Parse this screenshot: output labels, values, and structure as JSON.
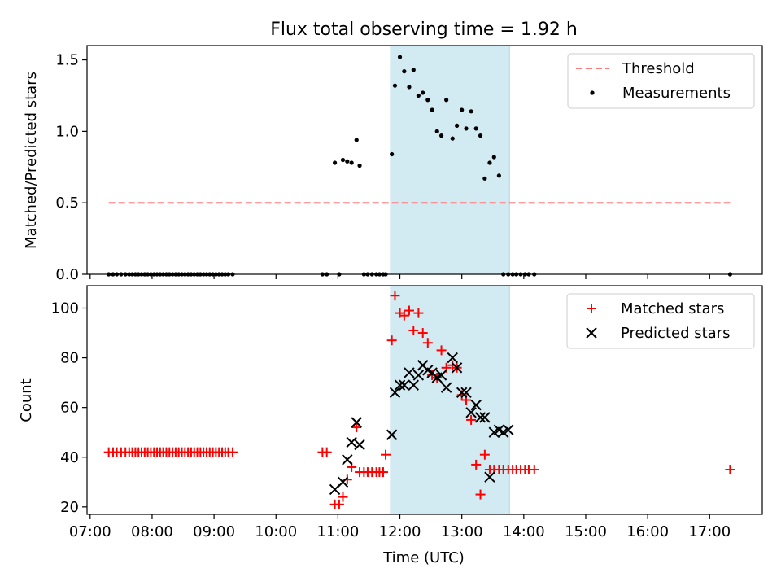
{
  "chart_data": [
    {
      "type": "scatter",
      "title": "Flux total observing time = 1.92 h",
      "xlabel": "",
      "ylabel": "Matched/Predicted stars",
      "x_unit": "hours UTC",
      "xlim": [
        6.95,
        17.85
      ],
      "ylim": [
        0,
        1.6
      ],
      "yticks": [
        0.0,
        0.5,
        1.0,
        1.5
      ],
      "ytick_labels": [
        "0.0",
        "0.5",
        "1.0",
        "1.5"
      ],
      "grid": false,
      "legend_position": "top-right",
      "shaded_span": {
        "x0": 11.85,
        "x1": 13.77,
        "color": "#add8e6"
      },
      "threshold": {
        "name": "Threshold",
        "y": 0.5,
        "x0": 7.3,
        "x1": 17.33,
        "color": "#ff7b7b",
        "style": "dashed"
      },
      "series": [
        {
          "name": "Measurements",
          "marker": "dot",
          "color": "#000000",
          "x": [
            7.3,
            7.37,
            7.43,
            7.5,
            7.57,
            7.63,
            7.68,
            7.73,
            7.78,
            7.83,
            7.88,
            7.93,
            7.98,
            8.03,
            8.08,
            8.13,
            8.18,
            8.23,
            8.28,
            8.33,
            8.38,
            8.43,
            8.48,
            8.53,
            8.58,
            8.63,
            8.68,
            8.73,
            8.78,
            8.83,
            8.88,
            8.93,
            8.98,
            9.03,
            9.08,
            9.13,
            9.18,
            9.23,
            9.3,
            10.75,
            10.82,
            10.95,
            11.02,
            11.08,
            11.15,
            11.22,
            11.3,
            11.35,
            11.42,
            11.48,
            11.55,
            11.62,
            11.67,
            11.73,
            11.77,
            11.87,
            11.92,
            12.0,
            12.07,
            12.15,
            12.22,
            12.3,
            12.37,
            12.45,
            12.52,
            12.6,
            12.67,
            12.75,
            12.85,
            12.92,
            13.0,
            13.07,
            13.15,
            13.23,
            13.3,
            13.37,
            13.45,
            13.52,
            13.6,
            13.67,
            13.75,
            13.82,
            13.88,
            13.95,
            14.02,
            14.08,
            14.17,
            17.33
          ],
          "y": [
            0,
            0,
            0,
            0,
            0,
            0,
            0,
            0,
            0,
            0,
            0,
            0,
            0,
            0,
            0,
            0,
            0,
            0,
            0,
            0,
            0,
            0,
            0,
            0,
            0,
            0,
            0,
            0,
            0,
            0,
            0,
            0,
            0,
            0,
            0,
            0,
            0,
            0,
            0,
            0,
            0,
            0.78,
            0,
            0.8,
            0.79,
            0.78,
            0.94,
            0.76,
            0,
            0,
            0,
            0,
            0,
            0,
            0,
            0.84,
            1.32,
            1.52,
            1.42,
            1.31,
            1.43,
            1.25,
            1.27,
            1.22,
            1.15,
            1.0,
            0.97,
            1.22,
            0.95,
            1.04,
            1.15,
            1.02,
            1.14,
            1.02,
            0.97,
            0.67,
            0.78,
            0.82,
            0.69,
            0,
            0,
            0,
            0,
            0,
            0,
            0,
            0,
            0
          ]
        }
      ],
      "legend": [
        {
          "name": "Threshold",
          "style": "dashed-line",
          "color": "#ff7b7b"
        },
        {
          "name": "Measurements",
          "style": "dot",
          "color": "#000000"
        }
      ]
    },
    {
      "type": "scatter",
      "title": "",
      "xlabel": "Time (UTC)",
      "ylabel": "Count",
      "x_unit": "hours UTC",
      "xlim": [
        6.95,
        17.85
      ],
      "ylim": [
        17,
        109
      ],
      "yticks": [
        20,
        40,
        60,
        80,
        100
      ],
      "ytick_labels": [
        "20",
        "40",
        "60",
        "80",
        "100"
      ],
      "xticks": [
        7,
        8,
        9,
        10,
        11,
        12,
        13,
        14,
        15,
        16,
        17
      ],
      "xtick_labels": [
        "07:00",
        "08:00",
        "09:00",
        "10:00",
        "11:00",
        "12:00",
        "13:00",
        "14:00",
        "15:00",
        "16:00",
        "17:00"
      ],
      "grid": false,
      "legend_position": "top-right",
      "shaded_span": {
        "x0": 11.85,
        "x1": 13.77,
        "color": "#add8e6"
      },
      "series": [
        {
          "name": "Matched stars",
          "marker": "plus",
          "color": "#ff0000",
          "x": [
            7.3,
            7.37,
            7.43,
            7.5,
            7.57,
            7.63,
            7.68,
            7.73,
            7.78,
            7.83,
            7.88,
            7.93,
            7.98,
            8.03,
            8.08,
            8.13,
            8.18,
            8.23,
            8.28,
            8.33,
            8.38,
            8.43,
            8.48,
            8.53,
            8.58,
            8.63,
            8.68,
            8.73,
            8.78,
            8.83,
            8.88,
            8.93,
            8.98,
            9.03,
            9.08,
            9.13,
            9.18,
            9.23,
            9.3,
            10.75,
            10.82,
            10.95,
            11.02,
            11.08,
            11.15,
            11.22,
            11.3,
            11.35,
            11.42,
            11.48,
            11.55,
            11.62,
            11.67,
            11.73,
            11.77,
            11.87,
            11.92,
            12.0,
            12.07,
            12.15,
            12.22,
            12.3,
            12.37,
            12.45,
            12.52,
            12.6,
            12.67,
            12.75,
            12.85,
            12.92,
            13.0,
            13.07,
            13.15,
            13.23,
            13.3,
            13.37,
            13.45,
            13.52,
            13.6,
            13.67,
            13.75,
            13.82,
            13.88,
            13.95,
            14.02,
            14.08,
            14.17,
            17.33
          ],
          "y": [
            42,
            42,
            42,
            42,
            42,
            42,
            42,
            42,
            42,
            42,
            42,
            42,
            42,
            42,
            42,
            42,
            42,
            42,
            42,
            42,
            42,
            42,
            42,
            42,
            42,
            42,
            42,
            42,
            42,
            42,
            42,
            42,
            42,
            42,
            42,
            42,
            42,
            42,
            42,
            42,
            42,
            21,
            21,
            24,
            31,
            36,
            52,
            34,
            34,
            34,
            34,
            34,
            34,
            34,
            41,
            87,
            105,
            98,
            97,
            99,
            91,
            98,
            90,
            86,
            73,
            72,
            83,
            76,
            77,
            76,
            65,
            63,
            55,
            37,
            25,
            41,
            35,
            35,
            35,
            35,
            35,
            35,
            35,
            35,
            35,
            35,
            35,
            35
          ]
        },
        {
          "name": "Predicted stars",
          "marker": "x",
          "color": "#000000",
          "x": [
            10.95,
            11.08,
            11.15,
            11.22,
            11.3,
            11.35,
            11.87,
            11.92,
            12.0,
            12.07,
            12.15,
            12.22,
            12.3,
            12.37,
            12.45,
            12.52,
            12.6,
            12.67,
            12.75,
            12.85,
            12.92,
            13.0,
            13.07,
            13.15,
            13.23,
            13.3,
            13.37,
            13.45,
            13.52,
            13.6,
            13.67,
            13.75
          ],
          "y": [
            27,
            30,
            39,
            46,
            54,
            45,
            49,
            66,
            69,
            69,
            74,
            69,
            73,
            77,
            75,
            74,
            72,
            73,
            68,
            80,
            76,
            66,
            66,
            58,
            61,
            56,
            56,
            32,
            50,
            51,
            50,
            51
          ]
        }
      ],
      "legend": [
        {
          "name": "Matched stars",
          "style": "plus",
          "color": "#ff0000"
        },
        {
          "name": "Predicted stars",
          "style": "x",
          "color": "#000000"
        }
      ]
    }
  ]
}
